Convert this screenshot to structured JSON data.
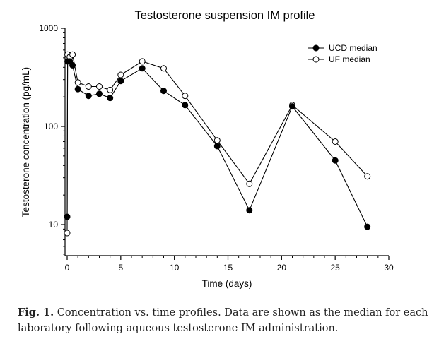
{
  "chart_data": {
    "type": "line",
    "title": "Testosterone suspension IM profile",
    "xlabel": "Time (days)",
    "ylabel": "Testosterone concentration (pg/mL)",
    "xlim": [
      -0.5,
      30
    ],
    "ylim": [
      5,
      1000
    ],
    "yscale": "log",
    "x_ticks": [
      0,
      5,
      10,
      15,
      20,
      25,
      30
    ],
    "y_ticks": [
      10,
      100,
      1000
    ],
    "x_tick_labels": [
      "0",
      "5",
      "10",
      "15",
      "20",
      "25",
      "30"
    ],
    "y_tick_labels": [
      "10",
      "100",
      "1000"
    ],
    "grid": false,
    "legend_position": "top-right",
    "series": [
      {
        "name": "UCD median",
        "marker": "filled-circle",
        "color": "#000000",
        "x": [
          0,
          0.04,
          0.25,
          0.5,
          1,
          2,
          3,
          4,
          5,
          7,
          9,
          11,
          14,
          17,
          21,
          25,
          28
        ],
        "y": [
          12,
          460,
          460,
          420,
          240,
          205,
          215,
          195,
          290,
          390,
          230,
          165,
          63,
          14,
          160,
          45,
          9.5
        ]
      },
      {
        "name": "UF median",
        "marker": "open-circle",
        "color": "#000000",
        "x": [
          0,
          0.04,
          0.25,
          0.5,
          1,
          2,
          3,
          4,
          5,
          7,
          9,
          11,
          14,
          17,
          21,
          25,
          28
        ],
        "y": [
          8.2,
          540,
          510,
          540,
          280,
          255,
          255,
          235,
          335,
          460,
          390,
          205,
          72,
          26,
          165,
          70,
          31
        ]
      }
    ]
  },
  "caption": {
    "label": "Fig. 1.",
    "text": "Concentration vs. time profiles. Data are shown as the median for each laboratory following aqueous testosterone IM administration."
  }
}
